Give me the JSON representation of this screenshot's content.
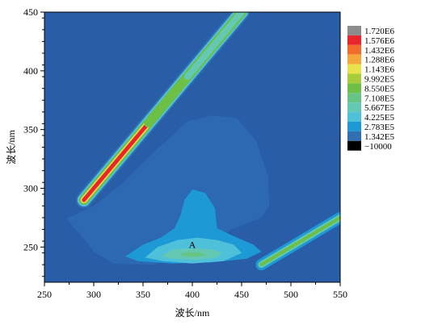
{
  "chart_data": {
    "type": "heatmap",
    "title": "",
    "xlabel": "波长/nm",
    "ylabel": "波长/nm",
    "xlim": [
      250,
      550
    ],
    "ylim": [
      220,
      450
    ],
    "x_ticks": [
      250,
      300,
      350,
      400,
      450,
      500,
      550
    ],
    "y_ticks": [
      250,
      300,
      350,
      400,
      450
    ],
    "legend_placement": "right",
    "grid": false,
    "levels": [
      {
        "label": "1.720E6",
        "value": 1720000,
        "color": "#8c8c8c"
      },
      {
        "label": "1.576E6",
        "value": 1576000,
        "color": "#e8262b"
      },
      {
        "label": "1.432E6",
        "value": 1432000,
        "color": "#f26c2b"
      },
      {
        "label": "1.288E6",
        "value": 1288000,
        "color": "#f4a83a"
      },
      {
        "label": "1.143E6",
        "value": 1143000,
        "color": "#e8e24c"
      },
      {
        "label": "9.992E5",
        "value": 999200,
        "color": "#a7ce3a"
      },
      {
        "label": "8.550E5",
        "value": 855000,
        "color": "#6dbf45"
      },
      {
        "label": "7.108E5",
        "value": 710800,
        "color": "#66c486"
      },
      {
        "label": "5.667E5",
        "value": 566700,
        "color": "#64c8b2"
      },
      {
        "label": "4.225E5",
        "value": 422500,
        "color": "#4fc0da"
      },
      {
        "label": "2.783E5",
        "value": 278300,
        "color": "#1d9ad6"
      },
      {
        "label": "1.342E5",
        "value": 134200,
        "color": "#2f6fb2"
      },
      {
        "label": "−10000",
        "value": -10000,
        "color": "#000000"
      }
    ],
    "background_color": "#2a5da8",
    "rayleigh_band_1": {
      "x": [
        290,
        450
      ],
      "y": [
        290,
        450
      ]
    },
    "rayleigh_band_2": {
      "x": [
        470,
        550
      ],
      "y": [
        235,
        275
      ]
    },
    "peaks": [
      {
        "label": "A",
        "x": 400,
        "y": 240
      }
    ],
    "annotations": [
      {
        "text": "A",
        "x": 400,
        "y": 252
      }
    ]
  }
}
